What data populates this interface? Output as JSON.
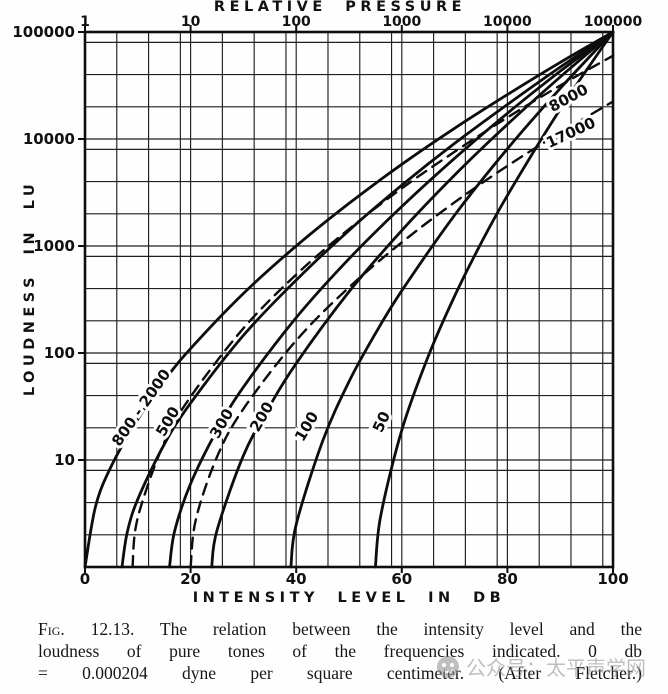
{
  "figure": {
    "top_axis": {
      "title": "RELATIVE PRESSURE",
      "tick_labels": [
        "1",
        "10",
        "100",
        "1000",
        "10000",
        "100000"
      ]
    },
    "left_axis": {
      "title": "LOUDNESS IN LU",
      "tick_labels": [
        "100000",
        "10000",
        "1000",
        "100",
        "10"
      ]
    },
    "bottom_axis": {
      "title": "INTENSITY LEVEL IN DB",
      "tick_labels": [
        "0",
        "20",
        "40",
        "60",
        "80",
        "100"
      ]
    }
  },
  "caption": {
    "fig_label": "Fig. 12.13.",
    "line1_rest": "The relation between the intensity level and the",
    "line2": "loudness of pure tones of the frequencies indicated.  0 db",
    "line3": "= 0.000204 dyne per square centimeter.   (After Fletcher.)"
  },
  "watermark": {
    "logo_icon": "wechat-official-account-icon",
    "text": "公众号：太平声学网"
  },
  "chart_data": {
    "type": "line",
    "title": "",
    "xlabel": "INTENSITY LEVEL IN DB",
    "ylabel": "LOUDNESS IN LU",
    "x2label": "RELATIVE PRESSURE",
    "xlim": [
      0,
      100
    ],
    "x_scale": "linear-db",
    "ylim": [
      1,
      100000
    ],
    "y_scale": "log",
    "x2lim": [
      1,
      100000
    ],
    "x2_scale": "log",
    "grid": true,
    "grid_subdivisions_per_decade": [
      1,
      2,
      4,
      8
    ],
    "legend_position": "labels-on-curves",
    "series": [
      {
        "label": "800 - 2000",
        "style": "solid",
        "frequency_hz": "800-2000",
        "label_pos": {
          "db": 11.4,
          "lu": 29,
          "angle": -55
        },
        "points": [
          [
            0,
            1
          ],
          [
            2,
            3.7
          ],
          [
            5,
            8.8
          ],
          [
            10,
            24
          ],
          [
            15,
            55
          ],
          [
            20,
            110
          ],
          [
            30,
            360
          ],
          [
            40,
            1000
          ],
          [
            50,
            2500
          ],
          [
            60,
            5800
          ],
          [
            70,
            12600
          ],
          [
            80,
            26000
          ],
          [
            90,
            52000
          ],
          [
            100,
            100000
          ]
        ]
      },
      {
        "label": "500",
        "style": "solid",
        "frequency_hz": "500",
        "label_pos": {
          "db": 16.5,
          "lu": 21.7,
          "angle": -60
        },
        "points": [
          [
            7,
            1
          ],
          [
            8,
            2.1
          ],
          [
            10,
            4.3
          ],
          [
            15,
            14
          ],
          [
            20,
            34
          ],
          [
            30,
            146
          ],
          [
            40,
            480
          ],
          [
            50,
            1400
          ],
          [
            60,
            3700
          ],
          [
            70,
            9100
          ],
          [
            80,
            21000
          ],
          [
            90,
            47000
          ],
          [
            100,
            100000
          ]
        ]
      },
      {
        "label": "300",
        "style": "solid",
        "frequency_hz": "300",
        "label_pos": {
          "db": 26.7,
          "lu": 20.8,
          "angle": -60
        },
        "points": [
          [
            16,
            1
          ],
          [
            17,
            2.2
          ],
          [
            20,
            6
          ],
          [
            25,
            19
          ],
          [
            30,
            48
          ],
          [
            40,
            214
          ],
          [
            50,
            760
          ],
          [
            60,
            2340
          ],
          [
            70,
            6600
          ],
          [
            80,
            17400
          ],
          [
            90,
            43000
          ],
          [
            100,
            100000
          ]
        ]
      },
      {
        "label": "200",
        "style": "solid",
        "frequency_hz": "200",
        "label_pos": {
          "db": 34.3,
          "lu": 24,
          "angle": -60
        },
        "points": [
          [
            24,
            1
          ],
          [
            25,
            2.2
          ],
          [
            30,
            11
          ],
          [
            35,
            32
          ],
          [
            40,
            80
          ],
          [
            50,
            373
          ],
          [
            60,
            1400
          ],
          [
            70,
            4600
          ],
          [
            80,
            13700
          ],
          [
            90,
            38000
          ],
          [
            100,
            100000
          ]
        ]
      },
      {
        "label": "100",
        "style": "solid",
        "frequency_hz": "100",
        "label_pos": {
          "db": 42.8,
          "lu": 19.5,
          "angle": -60
        },
        "points": [
          [
            39,
            1
          ],
          [
            40,
            2.5
          ],
          [
            45,
            15
          ],
          [
            50,
            54
          ],
          [
            55,
            152
          ],
          [
            60,
            382
          ],
          [
            70,
            1940
          ],
          [
            80,
            8100
          ],
          [
            90,
            29700
          ],
          [
            100,
            100000
          ]
        ]
      },
      {
        "label": "50",
        "style": "solid",
        "frequency_hz": "50",
        "label_pos": {
          "db": 57,
          "lu": 21.7,
          "angle": -65
        },
        "points": [
          [
            55,
            1
          ],
          [
            56,
            3
          ],
          [
            60,
            19
          ],
          [
            65,
            93
          ],
          [
            70,
            340
          ],
          [
            75,
            1060
          ],
          [
            80,
            2970
          ],
          [
            90,
            19000
          ],
          [
            100,
            100000
          ]
        ]
      },
      {
        "label": "8000",
        "style": "dashed",
        "frequency_hz": "8000",
        "label_pos": {
          "db": 92,
          "lu": 22000,
          "angle": -28
        },
        "points": [
          [
            9,
            1
          ],
          [
            10,
            2.9
          ],
          [
            15,
            14.6
          ],
          [
            20,
            39
          ],
          [
            30,
            170
          ],
          [
            40,
            540
          ],
          [
            50,
            1440
          ],
          [
            60,
            3460
          ],
          [
            70,
            7600
          ],
          [
            80,
            15900
          ],
          [
            90,
            31600
          ],
          [
            100,
            60000
          ]
        ]
      },
      {
        "label": "17000",
        "style": "dashed",
        "frequency_hz": "17000",
        "label_pos": {
          "db": 92.4,
          "lu": 10400,
          "angle": -25
        },
        "points": [
          [
            20,
            1
          ],
          [
            21,
            2.8
          ],
          [
            25,
            10.7
          ],
          [
            30,
            30
          ],
          [
            40,
            131
          ],
          [
            50,
            410
          ],
          [
            60,
            1080
          ],
          [
            70,
            2560
          ],
          [
            80,
            5600
          ],
          [
            90,
            11450
          ],
          [
            100,
            22400
          ]
        ]
      }
    ]
  }
}
